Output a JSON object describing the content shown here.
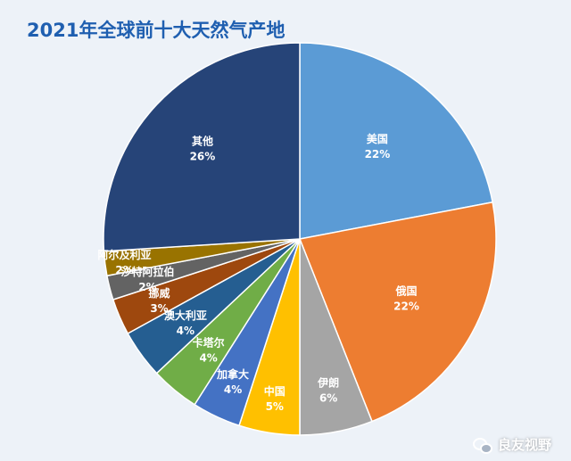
{
  "chart_data": {
    "type": "pie",
    "title": "2021年全球前十大天然气产地",
    "slices": [
      {
        "label": "美国",
        "value": 22,
        "value_label": "22%",
        "color": "#5b9bd5"
      },
      {
        "label": "俄国",
        "value": 22,
        "value_label": "22%",
        "color": "#ed7d31"
      },
      {
        "label": "伊朗",
        "value": 6,
        "value_label": "6%",
        "color": "#a5a5a5"
      },
      {
        "label": "中国",
        "value": 5,
        "value_label": "5%",
        "color": "#ffc000"
      },
      {
        "label": "加拿大",
        "value": 4,
        "value_label": "4%",
        "color": "#4472c4"
      },
      {
        "label": "卡塔尔",
        "value": 4,
        "value_label": "4%",
        "color": "#70ad47"
      },
      {
        "label": "澳大利亚",
        "value": 4,
        "value_label": "4%",
        "color": "#255e91"
      },
      {
        "label": "挪威",
        "value": 3,
        "value_label": "3%",
        "color": "#9e480e"
      },
      {
        "label": "沙特阿拉伯",
        "value": 2,
        "value_label": "2%",
        "color": "#636363"
      },
      {
        "label": "阿尔及利亚",
        "value": 2,
        "value_label": "2%",
        "color": "#997300"
      },
      {
        "label": "其他",
        "value": 26,
        "value_label": "26%",
        "color": "#264478"
      }
    ]
  },
  "watermark": {
    "text": "良友视野",
    "icon": "wechat-icon"
  }
}
